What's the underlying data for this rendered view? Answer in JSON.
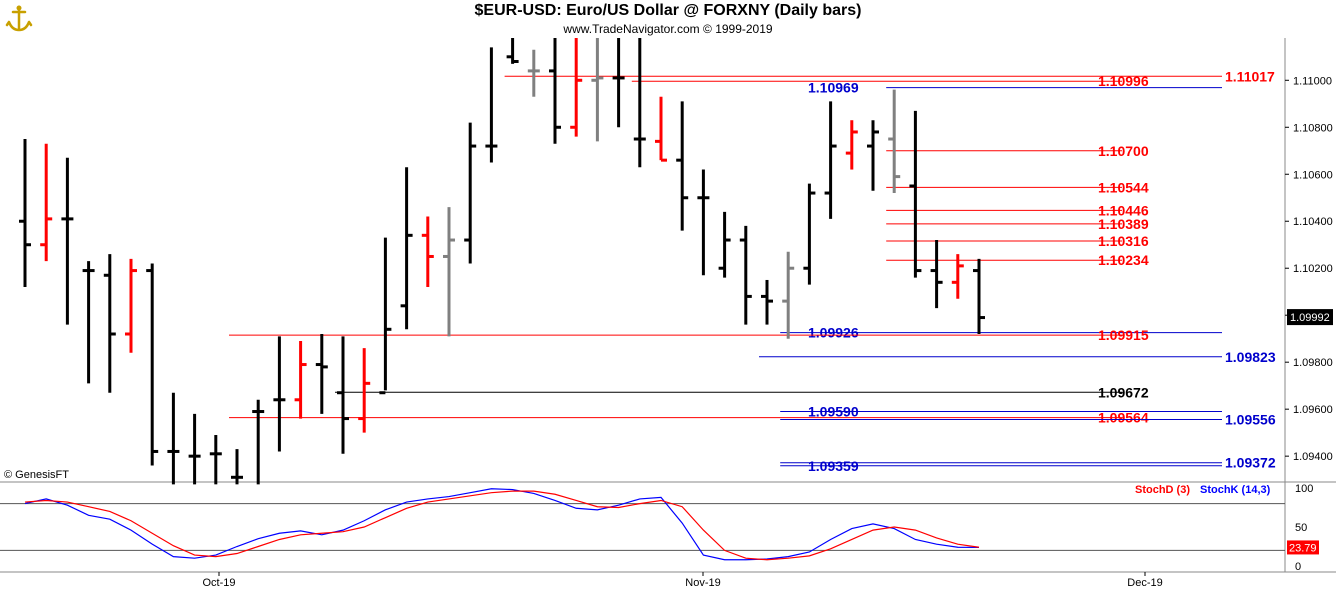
{
  "header": {
    "title": "$EUR-USD:  Euro/US Dollar @ FORXNY  (Daily bars)",
    "subtitle": "www.TradeNavigator.com © 1999-2019",
    "credit": "© GenesisFT"
  },
  "colors": {
    "up_bar": "#000000",
    "down_bar": "#ff0000",
    "inside_bar": "#808080",
    "support_line": "#0000cc",
    "resistance_line": "#ff0000",
    "stoch_k": "#0000ff",
    "stoch_d": "#ff0000"
  },
  "chart_data": [
    {
      "type": "ohlc",
      "title": "$EUR-USD:  Euro/US Dollar @ FORXNY  (Daily bars)",
      "ylim": [
        1.0929,
        1.1118
      ],
      "y_ticks": [
        "1.11000",
        "1.10800",
        "1.10600",
        "1.10400",
        "1.10200",
        "1.10000",
        "1.09800",
        "1.09600",
        "1.09400"
      ],
      "x_ticks": [
        "Oct-19",
        "Nov-19",
        "Dec-19"
      ],
      "last_price": "1.09992",
      "bars": [
        {
          "h": 1.1075,
          "l": 1.1012,
          "o": 1.104,
          "c": 1.103,
          "kind": "black"
        },
        {
          "h": 1.1073,
          "l": 1.1023,
          "o": 1.103,
          "c": 1.1041,
          "kind": "red"
        },
        {
          "h": 1.1067,
          "l": 1.0996,
          "o": 1.1041,
          "c": 1.1041,
          "kind": "black"
        },
        {
          "h": 1.1023,
          "l": 1.0971,
          "o": 1.1019,
          "c": 1.1019,
          "kind": "black"
        },
        {
          "h": 1.1026,
          "l": 1.0967,
          "o": 1.1017,
          "c": 1.0992,
          "kind": "black"
        },
        {
          "h": 1.1024,
          "l": 1.0984,
          "o": 1.0992,
          "c": 1.1019,
          "kind": "red"
        },
        {
          "h": 1.1022,
          "l": 1.0936,
          "o": 1.1019,
          "c": 1.0942,
          "kind": "black"
        },
        {
          "h": 1.0967,
          "l": 1.0928,
          "o": 1.0942,
          "c": 1.0942,
          "kind": "black"
        },
        {
          "h": 1.0958,
          "l": 1.0928,
          "o": 1.094,
          "c": 1.094,
          "kind": "black"
        },
        {
          "h": 1.0949,
          "l": 1.0928,
          "o": 1.0941,
          "c": 1.0941,
          "kind": "black"
        },
        {
          "h": 1.0943,
          "l": 1.0928,
          "o": 1.0931,
          "c": 1.0931,
          "kind": "black"
        },
        {
          "h": 1.0964,
          "l": 1.0928,
          "o": 1.0959,
          "c": 1.0959,
          "kind": "black"
        },
        {
          "h": 1.0991,
          "l": 1.0942,
          "o": 1.0964,
          "c": 1.0964,
          "kind": "black"
        },
        {
          "h": 1.0989,
          "l": 1.0956,
          "o": 1.0964,
          "c": 1.0979,
          "kind": "red"
        },
        {
          "h": 1.0992,
          "l": 1.0958,
          "o": 1.0979,
          "c": 1.0978,
          "kind": "black"
        },
        {
          "h": 1.0991,
          "l": 1.0941,
          "o": 1.0967,
          "c": 1.0956,
          "kind": "black"
        },
        {
          "h": 1.0986,
          "l": 1.095,
          "o": 1.0956,
          "c": 1.0971,
          "kind": "red"
        },
        {
          "h": 1.1033,
          "l": 1.0968,
          "o": 1.0967,
          "c": 1.0994,
          "kind": "black"
        },
        {
          "h": 1.1063,
          "l": 1.0994,
          "o": 1.1004,
          "c": 1.1034,
          "kind": "black"
        },
        {
          "h": 1.1042,
          "l": 1.1012,
          "o": 1.1034,
          "c": 1.1025,
          "kind": "red"
        },
        {
          "h": 1.1046,
          "l": 1.0991,
          "o": 1.1025,
          "c": 1.1032,
          "kind": "gray"
        },
        {
          "h": 1.1082,
          "l": 1.1022,
          "o": 1.1032,
          "c": 1.1072,
          "kind": "black"
        },
        {
          "h": 1.1114,
          "l": 1.1065,
          "o": 1.1072,
          "c": 1.1072,
          "kind": "black"
        },
        {
          "h": 1.1118,
          "l": 1.1107,
          "o": 1.111,
          "c": 1.1108,
          "kind": "black"
        },
        {
          "h": 1.1113,
          "l": 1.1093,
          "o": 1.1104,
          "c": 1.1104,
          "kind": "gray"
        },
        {
          "h": 1.1118,
          "l": 1.1073,
          "o": 1.1104,
          "c": 1.108,
          "kind": "black"
        },
        {
          "h": 1.1118,
          "l": 1.1076,
          "o": 1.108,
          "c": 1.11,
          "kind": "red"
        },
        {
          "h": 1.1118,
          "l": 1.1074,
          "o": 1.11,
          "c": 1.1101,
          "kind": "gray"
        },
        {
          "h": 1.1118,
          "l": 1.108,
          "o": 1.1101,
          "c": 1.1101,
          "kind": "black"
        },
        {
          "h": 1.1118,
          "l": 1.1063,
          "o": 1.1075,
          "c": 1.1075,
          "kind": "black"
        },
        {
          "h": 1.1093,
          "l": 1.1066,
          "o": 1.1074,
          "c": 1.1066,
          "kind": "red"
        },
        {
          "h": 1.1091,
          "l": 1.1036,
          "o": 1.1066,
          "c": 1.105,
          "kind": "black"
        },
        {
          "h": 1.1062,
          "l": 1.1017,
          "o": 1.105,
          "c": 1.105,
          "kind": "black"
        },
        {
          "h": 1.1044,
          "l": 1.1016,
          "o": 1.102,
          "c": 1.1032,
          "kind": "black"
        },
        {
          "h": 1.1038,
          "l": 1.0996,
          "o": 1.1032,
          "c": 1.1008,
          "kind": "black"
        },
        {
          "h": 1.1015,
          "l": 1.0996,
          "o": 1.1008,
          "c": 1.1006,
          "kind": "black"
        },
        {
          "h": 1.1027,
          "l": 1.099,
          "o": 1.1006,
          "c": 1.102,
          "kind": "gray"
        },
        {
          "h": 1.1056,
          "l": 1.1013,
          "o": 1.102,
          "c": 1.1052,
          "kind": "black"
        },
        {
          "h": 1.1091,
          "l": 1.1041,
          "o": 1.1052,
          "c": 1.1072,
          "kind": "black"
        },
        {
          "h": 1.1083,
          "l": 1.1062,
          "o": 1.1069,
          "c": 1.1078,
          "kind": "red"
        },
        {
          "h": 1.1083,
          "l": 1.1053,
          "o": 1.1072,
          "c": 1.1078,
          "kind": "black"
        },
        {
          "h": 1.1096,
          "l": 1.1052,
          "o": 1.1075,
          "c": 1.1059,
          "kind": "gray"
        },
        {
          "h": 1.1087,
          "l": 1.1016,
          "o": 1.1055,
          "c": 1.1019,
          "kind": "black"
        },
        {
          "h": 1.1032,
          "l": 1.1003,
          "o": 1.1019,
          "c": 1.1014,
          "kind": "black"
        },
        {
          "h": 1.1026,
          "l": 1.1007,
          "o": 1.1014,
          "c": 1.1021,
          "kind": "red"
        },
        {
          "h": 1.1024,
          "l": 1.0992,
          "o": 1.1019,
          "c": 1.0999,
          "kind": "black"
        }
      ],
      "levels": [
        {
          "value": 1.11017,
          "label": "1.11017",
          "color": "red",
          "from_bar": 23,
          "label_side": "right"
        },
        {
          "value": 1.10996,
          "label": "1.10996",
          "color": "red",
          "from_bar": 29,
          "label_side": "mid"
        },
        {
          "value": 1.10969,
          "label": "1.10969",
          "color": "blue",
          "from_bar": 41,
          "label_side": "left"
        },
        {
          "value": 1.107,
          "label": "1.10700",
          "color": "red",
          "from_bar": 41,
          "label_side": "mid"
        },
        {
          "value": 1.10544,
          "label": "1.10544",
          "color": "red",
          "from_bar": 41,
          "label_side": "mid"
        },
        {
          "value": 1.10446,
          "label": "1.10446",
          "color": "red",
          "from_bar": 41,
          "label_side": "mid"
        },
        {
          "value": 1.10389,
          "label": "1.10389",
          "color": "red",
          "from_bar": 41,
          "label_side": "mid"
        },
        {
          "value": 1.10316,
          "label": "1.10316",
          "color": "red",
          "from_bar": 41,
          "label_side": "mid"
        },
        {
          "value": 1.10234,
          "label": "1.10234",
          "color": "red",
          "from_bar": 41,
          "label_side": "mid"
        },
        {
          "value": 1.09926,
          "label": "1.09926",
          "color": "blue",
          "from_bar": 36,
          "label_side": "left"
        },
        {
          "value": 1.09915,
          "label": "1.09915",
          "color": "red",
          "from_bar": 10,
          "label_side": "mid"
        },
        {
          "value": 1.09823,
          "label": "1.09823",
          "color": "blue",
          "from_bar": 35,
          "label_side": "right"
        },
        {
          "value": 1.09672,
          "label": "1.09672",
          "color": "black",
          "from_bar": 15,
          "label_side": "mid"
        },
        {
          "value": 1.0959,
          "label": "1.09590",
          "color": "blue",
          "from_bar": 36,
          "label_side": "left"
        },
        {
          "value": 1.09564,
          "label": "1.09564",
          "color": "red",
          "from_bar": 10,
          "label_side": "mid"
        },
        {
          "value": 1.09556,
          "label": "1.09556",
          "color": "blue",
          "from_bar": 36,
          "label_side": "right"
        },
        {
          "value": 1.09372,
          "label": "1.09372",
          "color": "blue",
          "from_bar": 36,
          "label_side": "right"
        },
        {
          "value": 1.09359,
          "label": "1.09359",
          "color": "blue",
          "from_bar": 36,
          "label_side": "left"
        }
      ]
    },
    {
      "type": "line",
      "title": "",
      "legend": [
        "StochD (3)",
        "StochK (14,3)"
      ],
      "ylim": [
        0,
        100
      ],
      "y_ticks": [
        "100",
        "50",
        "0"
      ],
      "reference_lines": [
        80,
        20
      ],
      "last_value": "23.79",
      "series": [
        {
          "name": "StochK (14,3)",
          "color": "blue",
          "values": [
            80,
            86,
            78,
            65,
            60,
            46,
            28,
            12,
            10,
            14,
            25,
            35,
            42,
            45,
            40,
            46,
            58,
            72,
            82,
            86,
            89,
            94,
            99,
            98,
            93,
            84,
            74,
            72,
            78,
            86,
            88,
            55,
            14,
            8,
            8,
            9,
            12,
            18,
            34,
            48,
            54,
            48,
            34,
            28,
            24,
            23.8
          ]
        },
        {
          "name": "StochD (3)",
          "color": "red",
          "values": [
            82,
            84,
            82,
            76,
            70,
            58,
            42,
            26,
            14,
            12,
            16,
            25,
            34,
            40,
            42,
            44,
            50,
            62,
            74,
            82,
            86,
            90,
            94,
            96,
            96,
            92,
            84,
            76,
            75,
            80,
            84,
            76,
            46,
            20,
            10,
            8,
            10,
            13,
            22,
            34,
            46,
            50,
            46,
            36,
            28,
            24
          ]
        }
      ]
    }
  ]
}
